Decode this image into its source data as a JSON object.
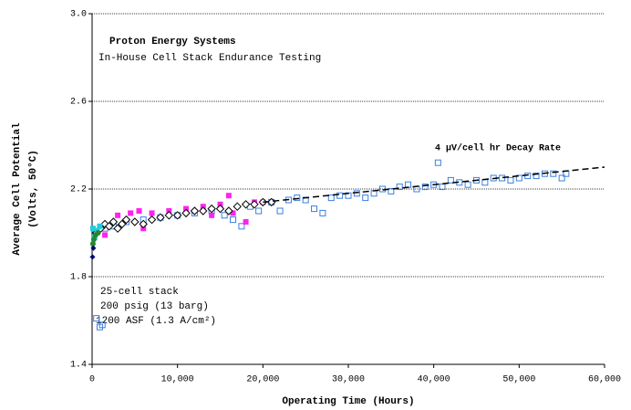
{
  "chart_data": {
    "type": "scatter",
    "title": "Proton Energy Systems",
    "subtitle": "In-House Cell Stack Endurance Testing",
    "xlabel": "Operating Time (Hours)",
    "ylabel": [
      "Average Cell Potential",
      "(Volts, 50°C)"
    ],
    "annotation": "4 µV/cell hr Decay Rate",
    "notes": [
      "25-cell stack",
      "200 psig (13 barg)",
      "1200 ASF (1.3 A/cm²)"
    ],
    "xlim": [
      0,
      60000
    ],
    "xticks": [
      0,
      {
        "value": 10000,
        "label": "10,000"
      },
      {
        "value": 20000,
        "label": "20,000"
      },
      {
        "value": 30000,
        "label": "30,000"
      },
      {
        "value": 40000,
        "label": "40,000"
      },
      {
        "value": 50000,
        "label": "50,000"
      },
      {
        "value": 60000,
        "label": "60,000"
      }
    ],
    "ylim": [
      1.4,
      3.0
    ],
    "yticks": [
      1.4,
      1.8,
      2.2,
      2.6,
      {
        "value": 3.0,
        "label": "3.0"
      }
    ],
    "grid": true,
    "series": [
      {
        "color": "#3a7fe0",
        "marker": "open-square",
        "x": [
          500,
          900,
          1200,
          1500,
          2500,
          4000,
          6000,
          8000,
          10000,
          12000,
          14000,
          15500,
          16500,
          17500,
          18500,
          19500,
          21000,
          22000,
          23000,
          24000,
          25000,
          26000,
          27000,
          28000,
          29000,
          30000,
          31000,
          32000,
          33000,
          34000,
          35000,
          36000,
          37000,
          38000,
          39000,
          40000,
          40500,
          41000,
          42000,
          43000,
          44000,
          45000,
          46000,
          47000,
          48000,
          49000,
          50000,
          51000,
          52000,
          53000,
          54000,
          55000,
          55500
        ],
        "values": [
          1.61,
          1.57,
          1.58,
          2.02,
          2.03,
          2.05,
          2.06,
          2.07,
          2.08,
          2.09,
          2.1,
          2.08,
          2.06,
          2.03,
          2.12,
          2.1,
          2.14,
          2.1,
          2.15,
          2.16,
          2.15,
          2.11,
          2.09,
          2.16,
          2.17,
          2.17,
          2.18,
          2.16,
          2.18,
          2.2,
          2.19,
          2.21,
          2.22,
          2.2,
          2.21,
          2.22,
          2.32,
          2.21,
          2.24,
          2.23,
          2.22,
          2.24,
          2.23,
          2.25,
          2.25,
          2.24,
          2.25,
          2.26,
          2.26,
          2.27,
          2.27,
          2.25,
          2.27
        ]
      },
      {
        "color": "#ff22ee",
        "marker": "filled-square",
        "x": [
          1500,
          3000,
          4500,
          5500,
          6000,
          7000,
          9000,
          11000,
          13000,
          14000,
          15000,
          16000,
          16500,
          18000,
          19000,
          20000
        ],
        "values": [
          1.99,
          2.08,
          2.09,
          2.1,
          2.02,
          2.09,
          2.1,
          2.11,
          2.12,
          2.08,
          2.13,
          2.17,
          2.09,
          2.05,
          2.14,
          2.14
        ]
      },
      {
        "color": "#000000",
        "marker": "open-diamond",
        "x": [
          500,
          1000,
          1500,
          2000,
          2500,
          3000,
          3500,
          4000,
          5000,
          6000,
          7000,
          8000,
          9000,
          10000,
          11000,
          12000,
          13000,
          14000,
          15000,
          16000,
          17000,
          18000,
          19000,
          20000,
          21000
        ],
        "values": [
          2.0,
          2.02,
          2.04,
          2.03,
          2.05,
          2.02,
          2.04,
          2.06,
          2.05,
          2.04,
          2.06,
          2.07,
          2.08,
          2.08,
          2.09,
          2.1,
          2.1,
          2.11,
          2.11,
          2.1,
          2.12,
          2.13,
          2.13,
          2.14,
          2.14
        ]
      },
      {
        "color": "#22ccdd",
        "marker": "filled-square",
        "x": [
          100,
          300,
          600,
          900
        ],
        "values": [
          2.02,
          1.98,
          2.01,
          2.03
        ]
      },
      {
        "color": "#228833",
        "marker": "filled-circle",
        "x": [
          100,
          200,
          400,
          700
        ],
        "values": [
          1.95,
          1.97,
          1.99,
          2.0
        ]
      },
      {
        "color": "#000080",
        "marker": "filled-diamond",
        "x": [
          50,
          150
        ],
        "values": [
          1.89,
          1.93
        ]
      },
      {
        "color": "#000000",
        "marker": "dashed-line",
        "x": [
          20000,
          60000
        ],
        "values": [
          2.14,
          2.3
        ]
      }
    ]
  }
}
